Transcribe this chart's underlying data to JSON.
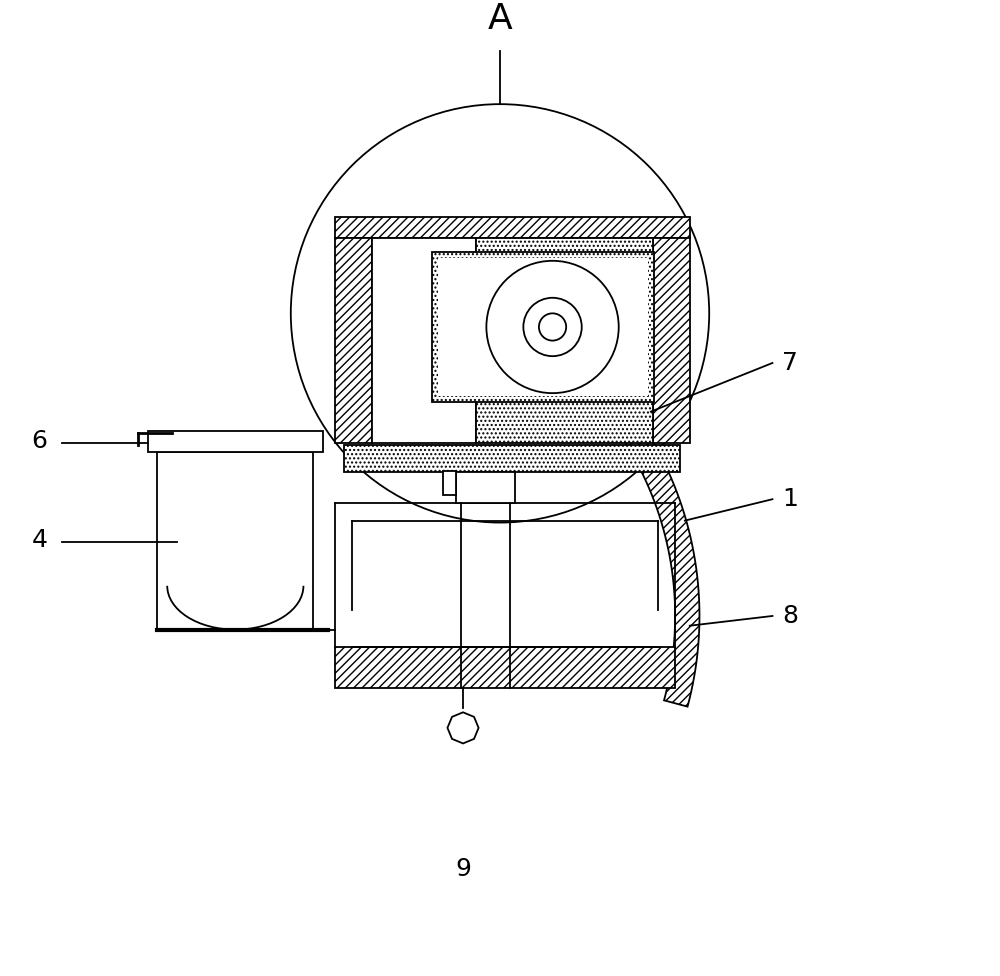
{
  "bg_color": "#ffffff",
  "line_color": "#000000",
  "label_A": "A",
  "label_1": "1",
  "label_4": "4",
  "label_6": "6",
  "label_7": "7",
  "label_8": "8",
  "label_9": "9",
  "figsize": [
    10.0,
    9.76
  ],
  "dpi": 100
}
